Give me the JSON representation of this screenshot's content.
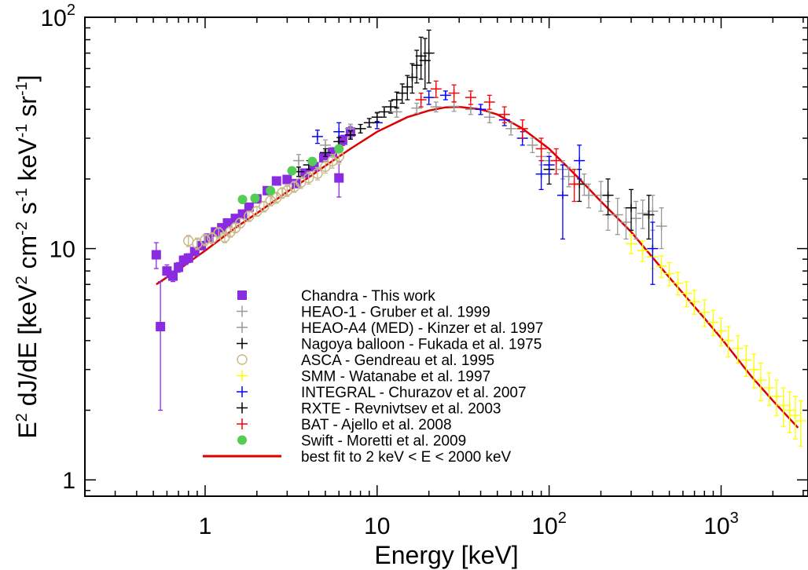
{
  "chart_data": {
    "type": "scatter",
    "title": "",
    "xlabel": "Energy [keV]",
    "ylabel": {
      "base": "E",
      "sup1": "2",
      "mid1": " dJ/dE [keV",
      "sup2": "2",
      "mid2": " cm",
      "sup3": "-2",
      "mid3": " s",
      "sup4": "-1",
      "mid4": " keV",
      "sup5": "-1",
      "mid5": " sr",
      "sup6": "-1",
      "end": "]"
    },
    "xscale": "log",
    "yscale": "log",
    "xlim": [
      0.2,
      3200
    ],
    "ylim": [
      0.85,
      100
    ],
    "xticks": [
      {
        "base": "1",
        "exp": ""
      },
      {
        "base": "10",
        "exp": ""
      },
      {
        "base": "10",
        "exp": "2"
      },
      {
        "base": "10",
        "exp": "3"
      }
    ],
    "yticks": [
      {
        "base": "1",
        "exp": ""
      },
      {
        "base": "10",
        "exp": ""
      },
      {
        "base": "10",
        "exp": "2"
      }
    ],
    "legend_position": "bottom-left",
    "series": [
      {
        "name": "Chandra - This work",
        "color": "#8a2be2",
        "marker": "square",
        "points": [
          [
            0.52,
            9.4,
            1.2
          ],
          [
            0.55,
            4.6,
            2.6
          ],
          [
            0.6,
            8.0,
            0.5
          ],
          [
            0.65,
            7.6,
            0.4
          ],
          [
            0.7,
            8.3,
            0.4
          ],
          [
            0.75,
            8.9,
            0.4
          ],
          [
            0.8,
            9.1,
            0.4
          ],
          [
            0.87,
            9.7,
            0.4
          ],
          [
            0.95,
            10.3,
            0.4
          ],
          [
            1.05,
            11.1,
            0.4
          ],
          [
            1.15,
            11.8,
            0.4
          ],
          [
            1.25,
            12.3,
            0.4
          ],
          [
            1.35,
            12.9,
            0.4
          ],
          [
            1.5,
            13.5,
            0.4
          ],
          [
            1.65,
            14.1,
            0.4
          ],
          [
            1.8,
            15.1,
            0.4
          ],
          [
            2.0,
            16.4,
            0.5
          ],
          [
            2.3,
            17.8,
            0.5
          ],
          [
            2.6,
            19.6,
            0.6
          ],
          [
            3.0,
            19.9,
            0.6
          ],
          [
            3.4,
            19.1,
            0.7
          ],
          [
            3.8,
            21.2,
            0.8
          ],
          [
            4.3,
            22.6,
            0.9
          ],
          [
            4.9,
            24.7,
            1.0
          ],
          [
            5.5,
            26.1,
            1.2
          ],
          [
            6.0,
            20.2,
            3.5
          ],
          [
            6.3,
            29.4,
            1.5
          ],
          [
            7.0,
            31.9,
            1.8
          ]
        ]
      },
      {
        "name": "HEAO-1 - Gruber et al. 1999",
        "color": "#999999",
        "marker": "plus",
        "points": [
          [
            3.5,
            24.0,
            1.5
          ],
          [
            5,
            28.0,
            1.5
          ],
          [
            7,
            33.0,
            1.5
          ],
          [
            10,
            37.0,
            2
          ],
          [
            13,
            39.0,
            2
          ],
          [
            17,
            40.5,
            2
          ],
          [
            22,
            41.0,
            2
          ],
          [
            28,
            41.2,
            2
          ],
          [
            35,
            40.0,
            2
          ],
          [
            45,
            37.0,
            2
          ],
          [
            60,
            33.0,
            2
          ],
          [
            80,
            28.0,
            2
          ],
          [
            100,
            24.0,
            2
          ],
          [
            130,
            20.5,
            2
          ],
          [
            170,
            17.0,
            2
          ],
          [
            220,
            14.0,
            2
          ],
          [
            280,
            13.0,
            2
          ],
          [
            350,
            14.2,
            2
          ],
          [
            450,
            12.5,
            2.5
          ]
        ]
      },
      {
        "name": "HEAO-A4 (MED) - Kinzer et al. 1997",
        "color": "#999999",
        "marker": "plus",
        "points": [
          [
            90,
            25.0,
            2
          ],
          [
            120,
            22.0,
            2
          ],
          [
            160,
            19.0,
            2
          ],
          [
            200,
            17.0,
            2.5
          ],
          [
            250,
            14.0,
            2.5
          ],
          [
            320,
            13.5,
            2.5
          ],
          [
            400,
            14.5,
            2.5
          ]
        ]
      },
      {
        "name": "Nagoya balloon - Fukada et al. 1975",
        "color": "#000000",
        "marker": "plus",
        "points": [
          [
            100,
            22.0,
            3
          ],
          [
            150,
            19.0,
            3
          ],
          [
            220,
            17.0,
            3
          ],
          [
            300,
            15.0,
            3
          ],
          [
            380,
            14.0,
            3
          ]
        ]
      },
      {
        "name": "ASCA - Gendreau et al. 1995",
        "color": "#c8b98a",
        "marker": "circle",
        "points": [
          [
            0.8,
            10.8,
            0.6
          ],
          [
            0.9,
            10.5,
            0.6
          ],
          [
            1.0,
            10.9,
            0.6
          ],
          [
            1.1,
            11.1,
            0.6
          ],
          [
            1.2,
            11.7,
            0.6
          ],
          [
            1.3,
            11.2,
            0.6
          ],
          [
            1.4,
            11.8,
            0.6
          ],
          [
            1.5,
            12.3,
            0.6
          ],
          [
            1.6,
            12.9,
            0.6
          ],
          [
            1.8,
            13.8,
            0.7
          ],
          [
            2.0,
            14.5,
            0.7
          ],
          [
            2.2,
            15.2,
            0.8
          ],
          [
            2.4,
            16.1,
            0.8
          ],
          [
            2.6,
            16.6,
            0.9
          ],
          [
            2.8,
            17.4,
            0.9
          ],
          [
            3.0,
            17.8,
            1.0
          ],
          [
            3.3,
            18.5,
            1.0
          ],
          [
            3.6,
            19.3,
            1.1
          ],
          [
            4.0,
            20.2,
            1.2
          ],
          [
            4.5,
            21.1,
            1.3
          ],
          [
            5.0,
            22.6,
            1.4
          ],
          [
            5.5,
            23.9,
            1.6
          ],
          [
            6.0,
            25.0,
            1.8
          ]
        ]
      },
      {
        "name": "SMM - Watanabe et al. 1997",
        "color": "#ffff00",
        "marker": "plus",
        "points": [
          [
            300,
            10.5,
            1
          ],
          [
            350,
            9.8,
            1
          ],
          [
            400,
            9.2,
            1
          ],
          [
            450,
            8.4,
            0.9
          ],
          [
            500,
            7.8,
            0.9
          ],
          [
            560,
            7.1,
            0.8
          ],
          [
            630,
            6.4,
            0.8
          ],
          [
            700,
            5.9,
            0.7
          ],
          [
            800,
            5.3,
            0.7
          ],
          [
            900,
            4.8,
            0.6
          ],
          [
            1000,
            4.4,
            0.6
          ],
          [
            1100,
            4.0,
            0.6
          ],
          [
            1250,
            3.7,
            0.5
          ],
          [
            1400,
            3.3,
            0.5
          ],
          [
            1550,
            3.0,
            0.5
          ],
          [
            1700,
            2.7,
            0.5
          ],
          [
            1900,
            2.5,
            0.4
          ],
          [
            2100,
            2.3,
            0.4
          ],
          [
            2300,
            2.1,
            0.4
          ],
          [
            2500,
            2.0,
            0.4
          ],
          [
            2700,
            1.9,
            0.4
          ],
          [
            2900,
            1.8,
            0.4
          ]
        ]
      },
      {
        "name": "INTEGRAL - Churazov et al. 2007",
        "color": "#0000ff",
        "marker": "plus",
        "points": [
          [
            4.5,
            30.5,
            2
          ],
          [
            6,
            32.0,
            3
          ],
          [
            10,
            35.0,
            2
          ],
          [
            20,
            45.0,
            3
          ],
          [
            25,
            46.0,
            2
          ],
          [
            40,
            40.0,
            2
          ],
          [
            55,
            36.0,
            2
          ],
          [
            70,
            30.0,
            2
          ],
          [
            100,
            23.0,
            2
          ],
          [
            150,
            24.0,
            4
          ],
          [
            90,
            21.0,
            3
          ],
          [
            120,
            17.0,
            6
          ],
          [
            400,
            10.0,
            3
          ]
        ]
      },
      {
        "name": "RXTE - Revnivtsev et al. 2003",
        "color": "#000000",
        "marker": "plus",
        "points": [
          [
            3.5,
            21.5,
            1
          ],
          [
            4,
            23.0,
            1
          ],
          [
            5,
            26.0,
            1
          ],
          [
            6,
            29.0,
            1.2
          ],
          [
            7,
            31.0,
            1.3
          ],
          [
            8,
            33.0,
            1.4
          ],
          [
            9,
            35.0,
            1.5
          ],
          [
            10,
            37.0,
            1.6
          ],
          [
            11,
            39.0,
            2
          ],
          [
            12,
            41.0,
            2.5
          ],
          [
            13,
            44.0,
            3.5
          ],
          [
            14,
            47.0,
            4.5
          ],
          [
            15,
            50.0,
            6
          ],
          [
            16,
            55.0,
            8
          ],
          [
            17,
            62.0,
            10
          ],
          [
            18,
            68.0,
            14
          ],
          [
            19,
            65.0,
            16
          ],
          [
            20,
            70.0,
            18
          ]
        ]
      },
      {
        "name": "BAT - Ajello et al. 2008",
        "color": "#ff0000",
        "marker": "plus",
        "points": [
          [
            18,
            44.0,
            3
          ],
          [
            22,
            49.0,
            4
          ],
          [
            28,
            47.0,
            4
          ],
          [
            35,
            45.0,
            3
          ],
          [
            45,
            43.0,
            3
          ],
          [
            55,
            38.0,
            3
          ],
          [
            70,
            33.0,
            3
          ],
          [
            90,
            27.0,
            3
          ],
          [
            110,
            24.0,
            3
          ],
          [
            140,
            19.0,
            3
          ]
        ]
      },
      {
        "name": "Swift - Moretti et al. 2009",
        "color": "#55cc55",
        "marker": "dot",
        "points": [
          [
            1.65,
            16.3,
            0.3
          ],
          [
            1.95,
            16.5,
            0.3
          ],
          [
            2.4,
            17.8,
            0.3
          ],
          [
            3.2,
            21.7,
            0.3
          ],
          [
            4.2,
            23.8,
            0.3
          ],
          [
            6.0,
            27.0,
            0.4
          ]
        ]
      }
    ],
    "fit": {
      "name": "best fit to 2 keV < E < 2000 keV",
      "color": "#dd0000",
      "points": [
        [
          0.52,
          7.0
        ],
        [
          0.7,
          8.1
        ],
        [
          1,
          9.8
        ],
        [
          1.5,
          12.3
        ],
        [
          2,
          14.2
        ],
        [
          3,
          17.6
        ],
        [
          4,
          20.3
        ],
        [
          5,
          22.8
        ],
        [
          7,
          27.0
        ],
        [
          10,
          32.0
        ],
        [
          15,
          37.0
        ],
        [
          20,
          39.5
        ],
        [
          25,
          40.8
        ],
        [
          30,
          41.0
        ],
        [
          40,
          40.0
        ],
        [
          50,
          38.0
        ],
        [
          70,
          33.0
        ],
        [
          100,
          27.0
        ],
        [
          150,
          20.0
        ],
        [
          200,
          16.0
        ],
        [
          300,
          11.8
        ],
        [
          500,
          7.5
        ],
        [
          800,
          5.0
        ],
        [
          1000,
          4.1
        ],
        [
          1500,
          2.8
        ],
        [
          2000,
          2.2
        ],
        [
          2800,
          1.68
        ]
      ]
    }
  }
}
